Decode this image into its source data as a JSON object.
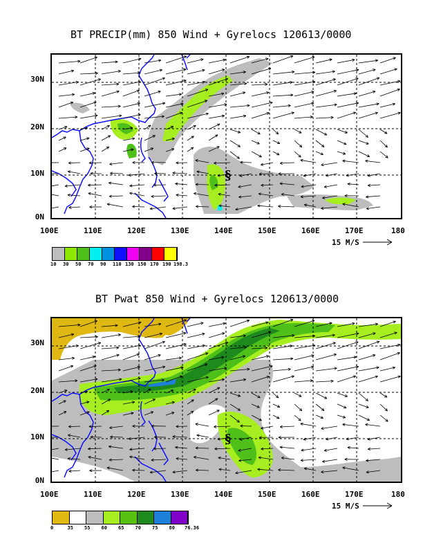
{
  "panels": [
    {
      "title": "BT PRECIP(mm) 850 Wind + Gyrelocs 120613/0000",
      "colorbar_labels": [
        "10",
        "30",
        "50",
        "70",
        "90",
        "110",
        "130",
        "150",
        "170",
        "190",
        "198.3"
      ],
      "colorbar_colors": [
        "#bdbdbd",
        "#8fe800",
        "#4fbf1a",
        "#00f0f0",
        "#0090e0",
        "#1010ff",
        "#f000f0",
        "#80008a",
        "#ff0000",
        "#ffff00"
      ]
    },
    {
      "title": "BT Pwat 850 Wind + Gyrelocs 120613/0000",
      "colorbar_labels": [
        "0",
        "35",
        "55",
        "60",
        "65",
        "70",
        "75",
        "80",
        "76.36"
      ],
      "colorbar_colors": [
        "#e0b814",
        "#ffffff",
        "#bdbdbd",
        "#a6ee20",
        "#58c010",
        "#1e8a1e",
        "#1e7fd8",
        "#8000c8"
      ]
    }
  ],
  "x_ticks": [
    "100E",
    "110E",
    "120E",
    "130E",
    "140E",
    "150E",
    "160E",
    "170E",
    "180"
  ],
  "y_ticks": [
    "30N",
    "20N",
    "10N",
    "0N"
  ],
  "ref_vector_label": "15 M/S",
  "gyre_symbol": "§",
  "colors": {
    "coast": "#1010ff",
    "grid": "#000000",
    "light_gray": "#bdbdbd",
    "lime": "#a6ee20",
    "green": "#4fbf1a",
    "dark_green": "#1e8a1e",
    "blue": "#1e7fd8",
    "gold": "#e0b814"
  }
}
